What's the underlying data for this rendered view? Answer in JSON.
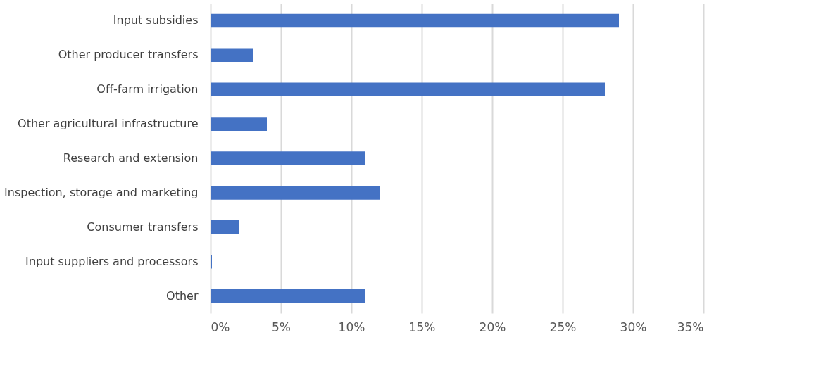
{
  "chart_data": {
    "type": "bar",
    "orientation": "horizontal",
    "categories": [
      "Input subsidies",
      "Other producer transfers",
      "Off-farm irrigation",
      "Other agricultural infrastructure",
      "Research and extension",
      "Inspection, storage and marketing",
      "Consumer transfers",
      "Input suppliers and processors",
      "Other"
    ],
    "values": [
      29,
      3,
      28,
      4,
      11,
      12,
      2,
      0.1,
      11
    ],
    "color": "#4472c4",
    "xlim": [
      0,
      35
    ],
    "xticks": [
      {
        "value": 0,
        "label": "0%"
      },
      {
        "value": 5,
        "label": "5%"
      },
      {
        "value": 10,
        "label": "10%"
      },
      {
        "value": 15,
        "label": "15%"
      },
      {
        "value": 20,
        "label": "20%"
      },
      {
        "value": 25,
        "label": "25%"
      },
      {
        "value": 30,
        "label": "30%"
      },
      {
        "value": 35,
        "label": "35%"
      }
    ],
    "grid": "x"
  }
}
